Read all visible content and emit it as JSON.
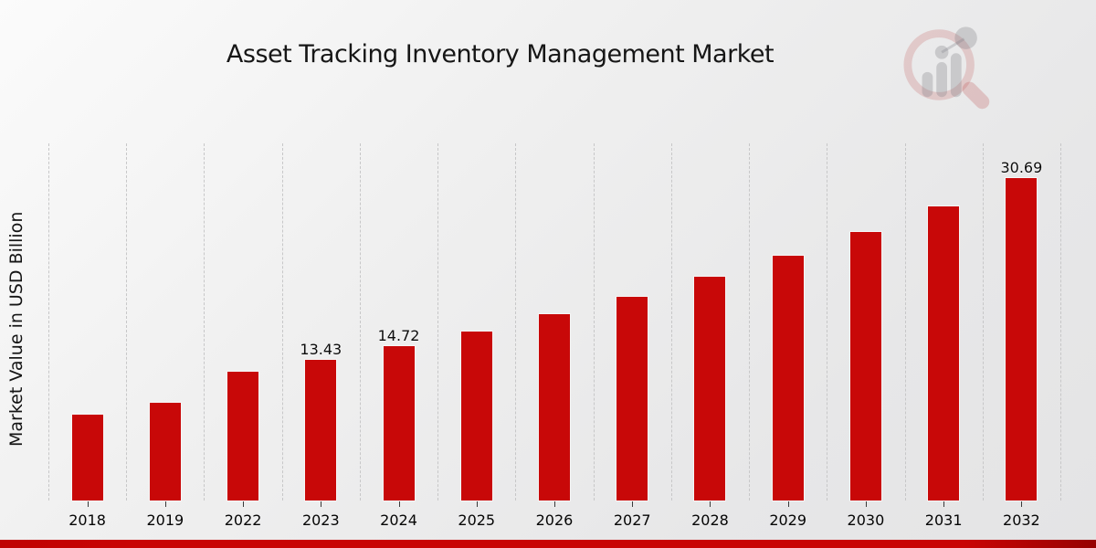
{
  "header": {
    "title": "Asset Tracking Inventory Management Market"
  },
  "logo": {
    "icon": "magnifier-bar-chart-watermark"
  },
  "chart_data": {
    "type": "bar",
    "title": "Asset Tracking Inventory Management Market",
    "xlabel": "",
    "ylabel": "Market Value in USD Billion",
    "categories": [
      "2018",
      "2019",
      "2022",
      "2023",
      "2024",
      "2025",
      "2026",
      "2027",
      "2028",
      "2029",
      "2030",
      "2031",
      "2032"
    ],
    "values": [
      8.2,
      9.3,
      12.3,
      13.43,
      14.72,
      16.1,
      17.7,
      19.4,
      21.3,
      23.3,
      25.6,
      28.0,
      30.69
    ],
    "labeled_points": {
      "2023": "13.43",
      "2024": "14.72",
      "2032": "30.69"
    },
    "bar_color": "#c80808",
    "ylim": [
      0,
      34
    ],
    "grid": "vertical-dashed-only",
    "legend": false,
    "accent_bar_color": "#c90404"
  }
}
